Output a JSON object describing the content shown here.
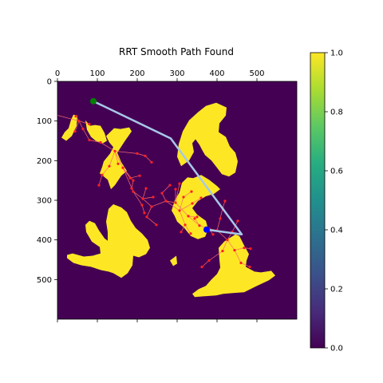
{
  "chart_data": {
    "type": "heatmap",
    "title": "RRT Smooth Path Found",
    "xlim": [
      0,
      600
    ],
    "ylim": [
      600,
      0
    ],
    "x_ticks": [
      0,
      100,
      200,
      300,
      400,
      500
    ],
    "y_ticks": [
      0,
      100,
      200,
      300,
      400,
      500
    ],
    "x_tick_position": "top",
    "grid": false,
    "colormap": "viridis",
    "colorbar": {
      "range": [
        0.0,
        1.0
      ],
      "ticks": [
        "0.0",
        "0.2",
        "0.4",
        "0.6",
        "0.8",
        "1.0"
      ]
    },
    "colors": {
      "free": "#440154",
      "obstacle": "#fde725",
      "tree": "#ff6b6b",
      "node": "#ff2020",
      "path": "#a8c8e8",
      "start": "#008000",
      "goal": "#0000ff"
    },
    "obstacles": [
      [
        [
          34,
          97
        ],
        [
          40,
          84
        ],
        [
          50,
          86
        ],
        [
          48,
          112
        ],
        [
          36,
          138
        ],
        [
          22,
          150
        ],
        [
          10,
          142
        ],
        [
          18,
          128
        ],
        [
          28,
          118
        ]
      ],
      [
        [
          70,
          98
        ],
        [
          82,
          112
        ],
        [
          94,
          110
        ],
        [
          108,
          112
        ],
        [
          118,
          130
        ],
        [
          124,
          150
        ],
        [
          114,
          156
        ],
        [
          96,
          150
        ],
        [
          84,
          140
        ],
        [
          74,
          122
        ]
      ],
      [
        [
          122,
          138
        ],
        [
          142,
          118
        ],
        [
          158,
          120
        ],
        [
          180,
          116
        ],
        [
          186,
          126
        ],
        [
          168,
          152
        ],
        [
          150,
          180
        ],
        [
          160,
          204
        ],
        [
          174,
          226
        ],
        [
          160,
          238
        ],
        [
          144,
          262
        ],
        [
          134,
          272
        ],
        [
          126,
          248
        ],
        [
          106,
          232
        ],
        [
          112,
          216
        ],
        [
          116,
          202
        ],
        [
          132,
          182
        ],
        [
          140,
          166
        ],
        [
          130,
          154
        ]
      ],
      [
        [
          372,
          62
        ],
        [
          398,
          54
        ],
        [
          424,
          66
        ],
        [
          422,
          86
        ],
        [
          406,
          106
        ],
        [
          404,
          128
        ],
        [
          422,
          140
        ],
        [
          432,
          164
        ],
        [
          446,
          180
        ],
        [
          452,
          202
        ],
        [
          446,
          230
        ],
        [
          430,
          240
        ],
        [
          412,
          234
        ],
        [
          400,
          218
        ],
        [
          386,
          200
        ],
        [
          370,
          186
        ],
        [
          362,
          172
        ],
        [
          356,
          160
        ],
        [
          346,
          146
        ],
        [
          338,
          156
        ],
        [
          342,
          178
        ],
        [
          330,
          200
        ],
        [
          310,
          214
        ],
        [
          300,
          190
        ],
        [
          304,
          158
        ],
        [
          314,
          126
        ],
        [
          330,
          98
        ],
        [
          352,
          78
        ]
      ],
      [
        [
          306,
          280
        ],
        [
          312,
          256
        ],
        [
          326,
          242
        ],
        [
          340,
          244
        ],
        [
          360,
          236
        ],
        [
          380,
          248
        ],
        [
          400,
          264
        ],
        [
          408,
          272
        ],
        [
          392,
          284
        ],
        [
          372,
          290
        ],
        [
          352,
          302
        ],
        [
          338,
          320
        ],
        [
          350,
          336
        ],
        [
          372,
          352
        ],
        [
          378,
          374
        ],
        [
          370,
          392
        ],
        [
          352,
          398
        ],
        [
          334,
          390
        ],
        [
          318,
          370
        ],
        [
          300,
          354
        ],
        [
          294,
          340
        ],
        [
          286,
          326
        ],
        [
          294,
          300
        ]
      ],
      [
        [
          140,
          310
        ],
        [
          160,
          318
        ],
        [
          174,
          330
        ],
        [
          184,
          352
        ],
        [
          196,
          370
        ],
        [
          212,
          384
        ],
        [
          226,
          400
        ],
        [
          232,
          420
        ],
        [
          222,
          436
        ],
        [
          204,
          444
        ],
        [
          190,
          440
        ],
        [
          188,
          464
        ],
        [
          176,
          484
        ],
        [
          160,
          496
        ],
        [
          140,
          484
        ],
        [
          128,
          480
        ],
        [
          108,
          476
        ],
        [
          84,
          468
        ],
        [
          60,
          464
        ],
        [
          40,
          458
        ],
        [
          24,
          446
        ],
        [
          24,
          438
        ],
        [
          38,
          434
        ],
        [
          66,
          442
        ],
        [
          88,
          440
        ],
        [
          108,
          434
        ],
        [
          106,
          418
        ],
        [
          86,
          404
        ],
        [
          72,
          380
        ],
        [
          70,
          362
        ],
        [
          80,
          352
        ],
        [
          94,
          358
        ],
        [
          104,
          376
        ],
        [
          118,
          396
        ],
        [
          126,
          402
        ],
        [
          126,
          380
        ],
        [
          122,
          354
        ],
        [
          128,
          322
        ]
      ],
      [
        [
          430,
          396
        ],
        [
          446,
          386
        ],
        [
          456,
          390
        ],
        [
          468,
          414
        ],
        [
          480,
          436
        ],
        [
          474,
          452
        ],
        [
          472,
          468
        ],
        [
          494,
          480
        ],
        [
          510,
          482
        ],
        [
          536,
          478
        ],
        [
          546,
          490
        ],
        [
          530,
          502
        ],
        [
          496,
          518
        ],
        [
          468,
          532
        ],
        [
          440,
          534
        ],
        [
          416,
          536
        ],
        [
          398,
          540
        ],
        [
          370,
          542
        ],
        [
          344,
          544
        ],
        [
          338,
          536
        ],
        [
          354,
          524
        ],
        [
          372,
          516
        ],
        [
          386,
          500
        ],
        [
          400,
          486
        ],
        [
          408,
          470
        ],
        [
          406,
          450
        ],
        [
          404,
          420
        ],
        [
          418,
          404
        ]
      ],
      [
        [
          298,
          440
        ],
        [
          300,
          460
        ],
        [
          290,
          466
        ],
        [
          282,
          452
        ]
      ]
    ],
    "tree_edges": [
      [
        [
          -6,
          84
        ],
        [
          54,
          100
        ]
      ],
      [
        [
          54,
          100
        ],
        [
          80,
          108
        ]
      ],
      [
        [
          54,
          100
        ],
        [
          64,
          120
        ]
      ],
      [
        [
          54,
          100
        ],
        [
          44,
          126
        ]
      ],
      [
        [
          54,
          100
        ],
        [
          46,
          88
        ]
      ],
      [
        [
          64,
          120
        ],
        [
          80,
          148
        ]
      ],
      [
        [
          80,
          148
        ],
        [
          108,
          154
        ]
      ],
      [
        [
          108,
          154
        ],
        [
          144,
          176
        ]
      ],
      [
        [
          144,
          176
        ],
        [
          152,
          208
        ]
      ],
      [
        [
          144,
          176
        ],
        [
          200,
          182
        ]
      ],
      [
        [
          200,
          182
        ],
        [
          220,
          188
        ]
      ],
      [
        [
          220,
          188
        ],
        [
          236,
          204
        ]
      ],
      [
        [
          144,
          176
        ],
        [
          164,
          218
        ]
      ],
      [
        [
          164,
          218
        ],
        [
          182,
          244
        ]
      ],
      [
        [
          182,
          244
        ],
        [
          206,
          238
        ]
      ],
      [
        [
          144,
          176
        ],
        [
          130,
          214
        ]
      ],
      [
        [
          130,
          214
        ],
        [
          112,
          236
        ]
      ],
      [
        [
          112,
          236
        ],
        [
          104,
          262
        ]
      ],
      [
        [
          164,
          218
        ],
        [
          190,
          278
        ]
      ],
      [
        [
          190,
          278
        ],
        [
          214,
          296
        ]
      ],
      [
        [
          214,
          296
        ],
        [
          240,
          292
        ]
      ],
      [
        [
          164,
          218
        ],
        [
          190,
          250
        ]
      ],
      [
        [
          190,
          250
        ],
        [
          186,
          270
        ]
      ],
      [
        [
          214,
          296
        ],
        [
          236,
          316
        ]
      ],
      [
        [
          236,
          316
        ],
        [
          272,
          302
        ]
      ],
      [
        [
          272,
          302
        ],
        [
          296,
          306
        ]
      ],
      [
        [
          190,
          278
        ],
        [
          212,
          312
        ]
      ],
      [
        [
          212,
          312
        ],
        [
          218,
          332
        ]
      ],
      [
        [
          272,
          302
        ],
        [
          306,
          326
        ]
      ],
      [
        [
          306,
          326
        ],
        [
          338,
          308
        ]
      ],
      [
        [
          296,
          306
        ],
        [
          328,
          340
        ]
      ],
      [
        [
          328,
          340
        ],
        [
          356,
          364
        ]
      ],
      [
        [
          306,
          326
        ],
        [
          320,
          362
        ]
      ],
      [
        [
          320,
          362
        ],
        [
          334,
          384
        ]
      ],
      [
        [
          356,
          364
        ],
        [
          380,
          372
        ]
      ],
      [
        [
          380,
          372
        ],
        [
          400,
          376
        ]
      ],
      [
        [
          400,
          376
        ],
        [
          426,
          400
        ]
      ],
      [
        [
          426,
          400
        ],
        [
          444,
          426
        ]
      ],
      [
        [
          444,
          426
        ],
        [
          460,
          458
        ]
      ],
      [
        [
          380,
          372
        ],
        [
          390,
          386
        ]
      ],
      [
        [
          426,
          400
        ],
        [
          414,
          428
        ]
      ],
      [
        [
          414,
          428
        ],
        [
          380,
          452
        ]
      ],
      [
        [
          380,
          452
        ],
        [
          362,
          468
        ]
      ],
      [
        [
          444,
          426
        ],
        [
          468,
          420
        ]
      ],
      [
        [
          468,
          420
        ],
        [
          484,
          422
        ]
      ],
      [
        [
          460,
          458
        ],
        [
          482,
          468
        ]
      ],
      [
        [
          400,
          376
        ],
        [
          408,
          346
        ]
      ],
      [
        [
          408,
          346
        ],
        [
          414,
          320
        ]
      ],
      [
        [
          414,
          320
        ],
        [
          420,
          302
        ]
      ],
      [
        [
          426,
          400
        ],
        [
          438,
          380
        ]
      ],
      [
        [
          438,
          380
        ],
        [
          452,
          352
        ]
      ],
      [
        [
          356,
          364
        ],
        [
          344,
          346
        ]
      ],
      [
        [
          306,
          326
        ],
        [
          316,
          292
        ]
      ],
      [
        [
          316,
          292
        ],
        [
          336,
          278
        ]
      ],
      [
        [
          296,
          306
        ],
        [
          296,
          272
        ]
      ],
      [
        [
          296,
          306
        ],
        [
          306,
          258
        ]
      ],
      [
        [
          214,
          296
        ],
        [
          222,
          270
        ]
      ],
      [
        [
          236,
          316
        ],
        [
          224,
          342
        ]
      ],
      [
        [
          224,
          342
        ],
        [
          248,
          362
        ]
      ],
      [
        [
          338,
          308
        ],
        [
          360,
          294
        ]
      ],
      [
        [
          328,
          340
        ],
        [
          350,
          342
        ]
      ],
      [
        [
          320,
          362
        ],
        [
          310,
          380
        ]
      ],
      [
        [
          272,
          302
        ],
        [
          262,
          282
        ]
      ],
      [
        [
          262,
          282
        ],
        [
          282,
          262
        ]
      ]
    ],
    "tree_nodes_note": "nodes drawn at every edge endpoint",
    "path": [
      [
        90,
        50
      ],
      [
        284,
        144
      ],
      [
        462,
        386
      ],
      [
        374,
        374
      ]
    ],
    "start": [
      90,
      50
    ],
    "goal": [
      374,
      374
    ]
  }
}
